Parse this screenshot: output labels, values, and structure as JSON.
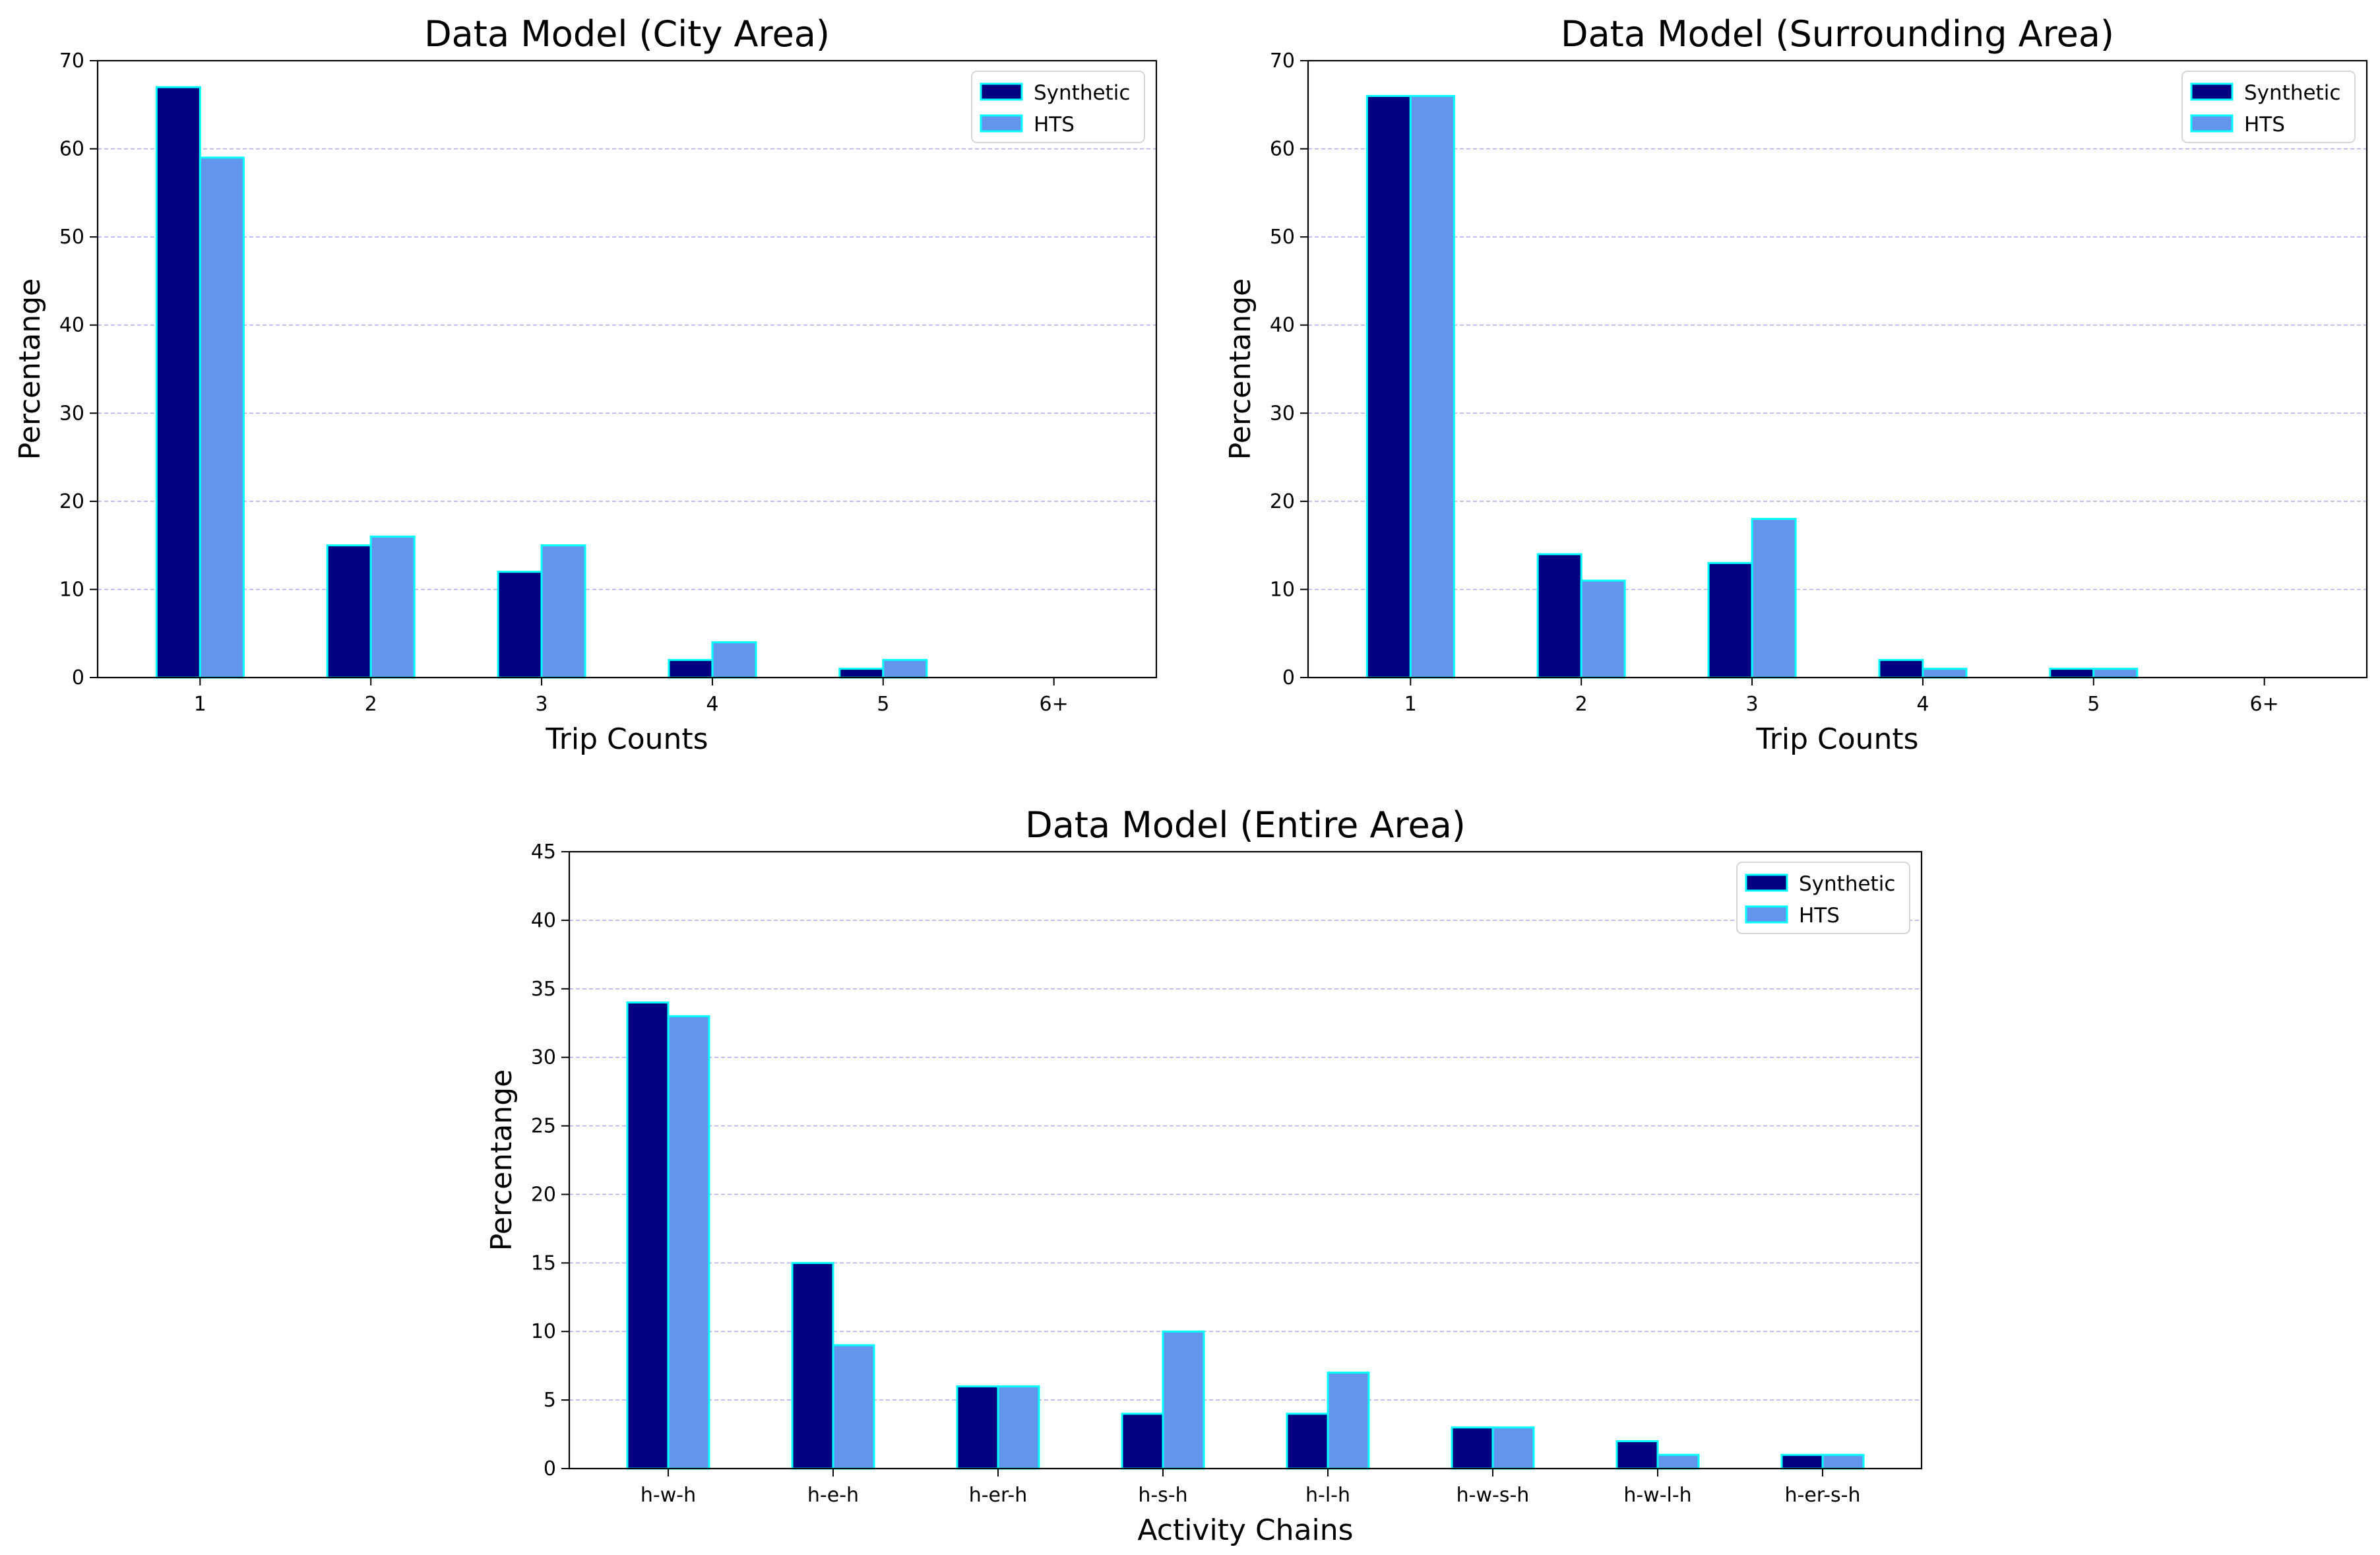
{
  "colors": {
    "synthetic_fill": "#000080",
    "hts_fill": "#6495ED",
    "bar_edge": "#00FFFF",
    "grid": "#B0B0F0",
    "axis": "#000000"
  },
  "chart_data": [
    {
      "type": "bar",
      "title": "Data Model (City Area)",
      "xlabel": "Trip Counts",
      "ylabel": "Percentange",
      "categories": [
        "1",
        "2",
        "3",
        "4",
        "5",
        "6+"
      ],
      "series": [
        {
          "name": "Synthetic",
          "values": [
            67,
            15,
            12,
            2,
            1,
            0
          ]
        },
        {
          "name": "HTS",
          "values": [
            59,
            16,
            15,
            4,
            2,
            0
          ]
        }
      ],
      "ylim": [
        0,
        70
      ],
      "yticks": [
        0,
        10,
        20,
        30,
        40,
        50,
        60,
        70
      ],
      "grid": "horizontal dashed",
      "legend": "top-right"
    },
    {
      "type": "bar",
      "title": "Data Model (Surrounding Area)",
      "xlabel": "Trip Counts",
      "ylabel": "Percentange",
      "categories": [
        "1",
        "2",
        "3",
        "4",
        "5",
        "6+"
      ],
      "series": [
        {
          "name": "Synthetic",
          "values": [
            66,
            14,
            13,
            2,
            1,
            0
          ]
        },
        {
          "name": "HTS",
          "values": [
            66,
            11,
            18,
            1,
            1,
            0
          ]
        }
      ],
      "ylim": [
        0,
        70
      ],
      "yticks": [
        0,
        10,
        20,
        30,
        40,
        50,
        60,
        70
      ],
      "grid": "horizontal dashed",
      "legend": "top-right"
    },
    {
      "type": "bar",
      "title": "Data Model (Entire Area)",
      "xlabel": "Activity Chains",
      "ylabel": "Percentange",
      "categories": [
        "h-w-h",
        "h-e-h",
        "h-er-h",
        "h-s-h",
        "h-l-h",
        "h-w-s-h",
        "h-w-l-h",
        "h-er-s-h"
      ],
      "series": [
        {
          "name": "Synthetic",
          "values": [
            34,
            15,
            6,
            4,
            4,
            3,
            2,
            1
          ]
        },
        {
          "name": "HTS",
          "values": [
            33,
            9,
            6,
            10,
            7,
            3,
            1,
            1
          ]
        }
      ],
      "ylim": [
        0,
        45
      ],
      "yticks": [
        0,
        5,
        10,
        15,
        20,
        25,
        30,
        35,
        40,
        45
      ],
      "grid": "horizontal dashed",
      "legend": "top-right"
    }
  ]
}
